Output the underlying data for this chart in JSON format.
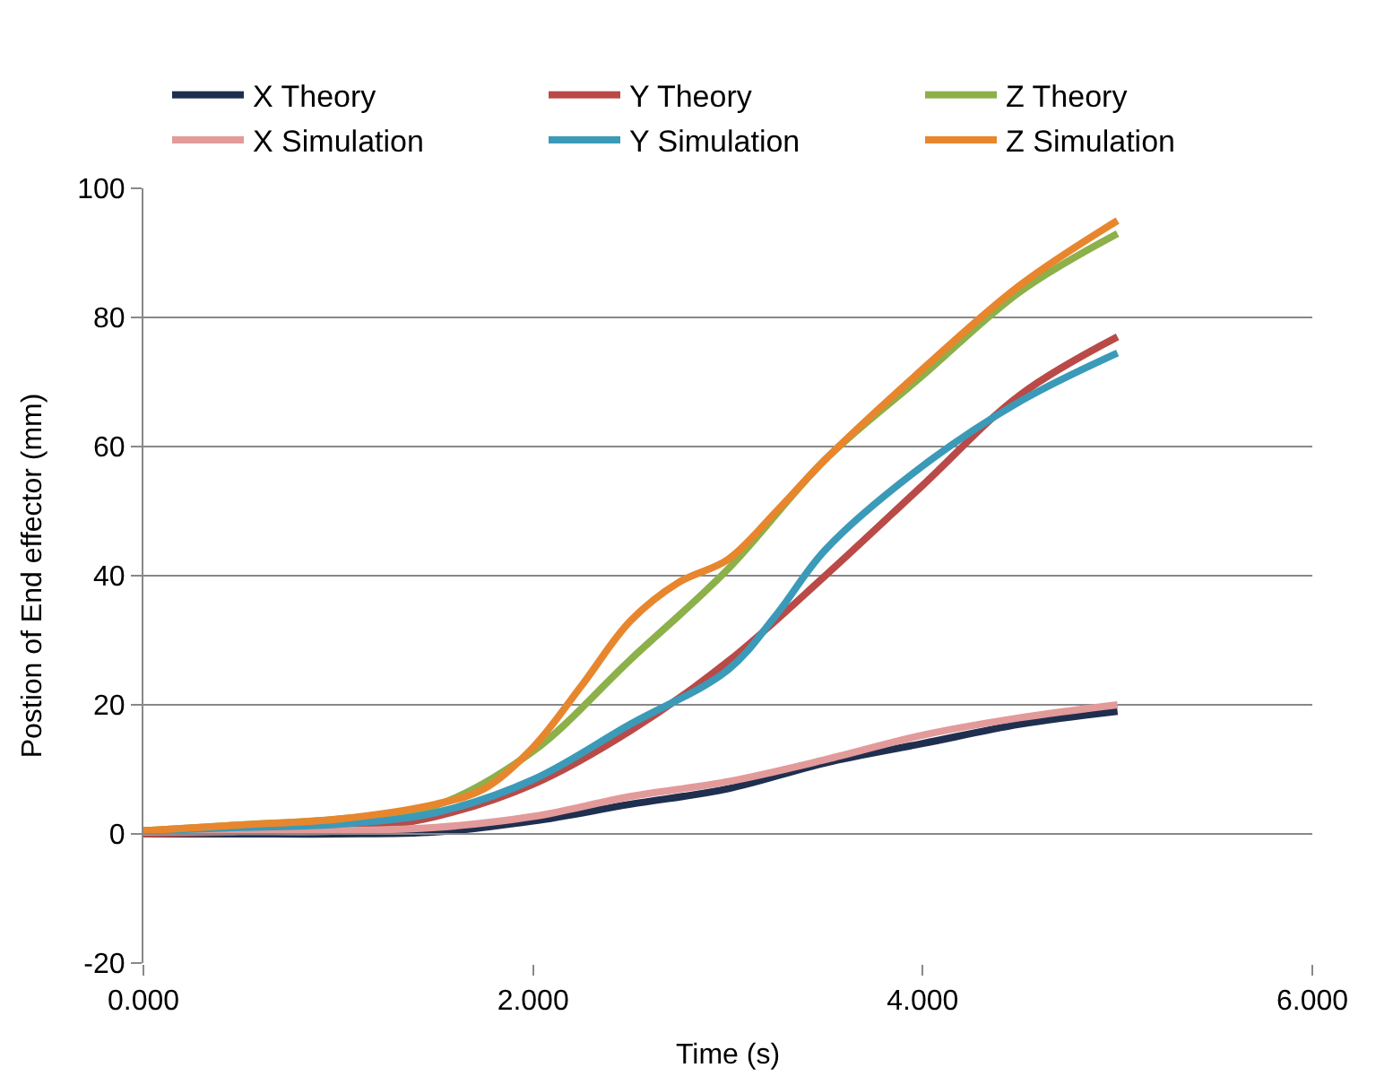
{
  "chart_data": {
    "type": "line",
    "xlabel": "Time (s)",
    "ylabel": "Postion of End effector (mm)",
    "xlim": [
      0,
      6
    ],
    "xticks": [
      {
        "value": 0,
        "label": "0.000"
      },
      {
        "value": 2,
        "label": "2.000"
      },
      {
        "value": 4,
        "label": "4.000"
      },
      {
        "value": 6,
        "label": "6.000"
      }
    ],
    "ylim": [
      -20,
      100
    ],
    "yticks": [
      -20,
      0,
      20,
      40,
      60,
      80,
      100
    ],
    "grid": "y",
    "legend": "top",
    "marker": "none",
    "line_style": "solid",
    "x": [
      0,
      0.5,
      1,
      1.5,
      2,
      2.5,
      3,
      3.5,
      4,
      4.5,
      5
    ],
    "series": [
      {
        "name": "X Theory",
        "color": "#1f2f4f",
        "values": [
          0,
          0,
          0,
          0.3,
          2,
          4.6,
          7,
          11,
          14,
          17,
          19
        ]
      },
      {
        "name": "Y Theory",
        "color": "#b94a48",
        "values": [
          0,
          0.3,
          0.5,
          2.7,
          7.7,
          16,
          26.7,
          40,
          54,
          68,
          77
        ]
      },
      {
        "name": "Z Theory",
        "color": "#8cb04a",
        "values": [
          0.5,
          1.4,
          2.3,
          4.4,
          12.8,
          27,
          41,
          58,
          71,
          84,
          93
        ]
      },
      {
        "name": "X Simulation",
        "color": "#e39a9a",
        "values": [
          0.3,
          0.4,
          0.5,
          1,
          2.7,
          5.8,
          8.1,
          11.5,
          15.3,
          18,
          20
        ]
      },
      {
        "name": "Y Simulation",
        "color": "#3b9ab8",
        "x": [
          0,
          0.5,
          1,
          1.5,
          2,
          2.5,
          3,
          3.25,
          3.5,
          4,
          4.5,
          5
        ],
        "values": [
          0.5,
          1,
          1.5,
          3.3,
          8.4,
          17,
          25.4,
          34,
          44,
          57,
          67,
          74.5
        ]
      },
      {
        "name": "Z Simulation",
        "color": "#e8862e",
        "x": [
          0,
          0.5,
          1,
          1.5,
          1.75,
          2,
          2.25,
          2.5,
          2.75,
          3,
          3.25,
          3.5,
          4,
          4.5,
          5
        ],
        "values": [
          0.5,
          1.4,
          2.3,
          4.6,
          7,
          13.4,
          23,
          33,
          39,
          42.5,
          50,
          58,
          72,
          85,
          95
        ]
      }
    ]
  }
}
